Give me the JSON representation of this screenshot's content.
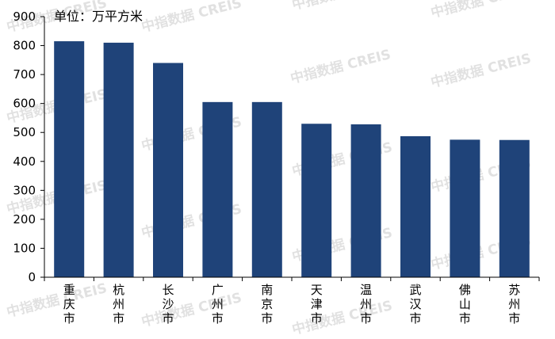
{
  "chart_data": {
    "type": "bar",
    "unit_label": "单位：万平方米",
    "categories": [
      "重庆市",
      "杭州市",
      "长沙市",
      "广州市",
      "南京市",
      "天津市",
      "温州市",
      "武汉市",
      "佛山市",
      "苏州市"
    ],
    "values": [
      815,
      810,
      740,
      605,
      605,
      530,
      528,
      487,
      475,
      474
    ],
    "ylim": [
      0,
      900
    ],
    "yticks": [
      0,
      100,
      200,
      300,
      400,
      500,
      600,
      700,
      800,
      900
    ],
    "grid": false,
    "legend": "none",
    "bar_color": "#1f4379"
  },
  "watermark": {
    "text": "中指数据 CREIS"
  }
}
